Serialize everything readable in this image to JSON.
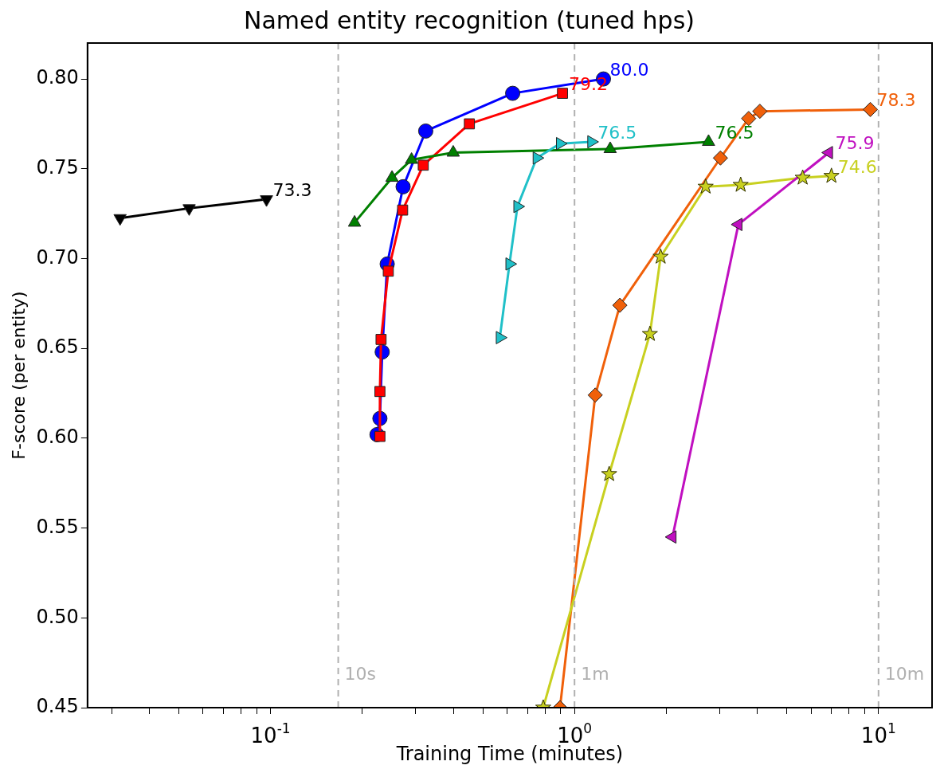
{
  "chart_data": {
    "type": "line",
    "title": "Named entity recognition (tuned hps)",
    "xlabel": "Training Time (minutes)",
    "ylabel": "F-score (per entity)",
    "log": "x",
    "grid": false,
    "legend": false,
    "line_style": "solid",
    "xlim": [
      0.025,
      15
    ],
    "ylim": [
      0.45,
      0.82
    ],
    "xticks": [
      {
        "value": 0.03,
        "label": null
      },
      {
        "value": 0.04,
        "label": null
      },
      {
        "value": 0.05,
        "label": null
      },
      {
        "value": 0.06,
        "label": null
      },
      {
        "value": 0.07,
        "label": null
      },
      {
        "value": 0.08,
        "label": null
      },
      {
        "value": 0.09,
        "label": null
      },
      {
        "value": 0.1,
        "label": "10$^{-1}$"
      },
      {
        "value": 0.2,
        "label": null
      },
      {
        "value": 0.3,
        "label": null
      },
      {
        "value": 0.4,
        "label": null
      },
      {
        "value": 0.5,
        "label": null
      },
      {
        "value": 0.6,
        "label": null
      },
      {
        "value": 0.7,
        "label": null
      },
      {
        "value": 0.8,
        "label": null
      },
      {
        "value": 0.9,
        "label": null
      },
      {
        "value": 1,
        "label": "10$^{0}$"
      },
      {
        "value": 2,
        "label": null
      },
      {
        "value": 3,
        "label": null
      },
      {
        "value": 4,
        "label": null
      },
      {
        "value": 5,
        "label": null
      },
      {
        "value": 6,
        "label": null
      },
      {
        "value": 7,
        "label": null
      },
      {
        "value": 8,
        "label": null
      },
      {
        "value": 9,
        "label": null
      },
      {
        "value": 10,
        "label": "10$^{1}$"
      }
    ],
    "yticks": [
      {
        "value": 0.45,
        "label": "0.45"
      },
      {
        "value": 0.5,
        "label": "0.50"
      },
      {
        "value": 0.55,
        "label": "0.55"
      },
      {
        "value": 0.6,
        "label": "0.60"
      },
      {
        "value": 0.65,
        "label": "0.65"
      },
      {
        "value": 0.7,
        "label": "0.70"
      },
      {
        "value": 0.75,
        "label": "0.75"
      },
      {
        "value": 0.8,
        "label": "0.80"
      }
    ],
    "annotations": [
      {
        "text": "73.3",
        "x": 0.097,
        "y": 0.733
      },
      {
        "text": "80.0",
        "x": 1.245,
        "y": 0.8
      },
      {
        "text": "79.2",
        "x": 0.913,
        "y": 0.792
      },
      {
        "text": "76.5",
        "x": 2.76,
        "y": 0.765
      },
      {
        "text": "76.5",
        "x": 1.136,
        "y": 0.765
      },
      {
        "text": "78.3",
        "x": 9.4,
        "y": 0.783
      },
      {
        "text": "74.6",
        "x": 7.0,
        "y": 0.746
      },
      {
        "text": "75.9",
        "x": 6.87,
        "y": 0.759
      }
    ],
    "ref_lines": [
      {
        "axis": "x",
        "value": 0.167,
        "label": "10s",
        "color": "#b0b0b0",
        "line_style": "dashed"
      },
      {
        "axis": "x",
        "value": 1,
        "label": "1m",
        "color": "#b0b0b0",
        "line_style": "dashed"
      },
      {
        "axis": "x",
        "value": 10,
        "label": "10m",
        "color": "#b0b0b0",
        "line_style": "dashed"
      }
    ],
    "series": [
      {
        "color": "#000000",
        "marker": "triangle-down",
        "x": [
          0.032,
          0.054,
          0.097
        ],
        "values": [
          0.7225,
          0.728,
          0.733
        ]
      },
      {
        "color": "#0000ff",
        "marker": "circle",
        "x": [
          0.224,
          0.229,
          0.233,
          0.242,
          0.273,
          0.324,
          0.626,
          1.245
        ],
        "values": [
          0.602,
          0.611,
          0.648,
          0.697,
          0.74,
          0.771,
          0.792,
          0.8
        ]
      },
      {
        "color": "#ff0000",
        "marker": "square",
        "x": [
          0.229,
          0.229,
          0.231,
          0.244,
          0.272,
          0.318,
          0.451,
          0.913
        ],
        "values": [
          0.601,
          0.626,
          0.655,
          0.693,
          0.727,
          0.752,
          0.775,
          0.792
        ]
      },
      {
        "color": "#008000",
        "marker": "triangle",
        "x": [
          0.189,
          0.251,
          0.291,
          0.399,
          1.31,
          2.76
        ],
        "values": [
          0.72,
          0.745,
          0.755,
          0.759,
          0.761,
          0.765
        ]
      },
      {
        "color": "#20c0c8",
        "marker": "triangle-right",
        "x": [
          0.568,
          0.611,
          0.649,
          0.751,
          0.896,
          1.136
        ],
        "values": [
          0.656,
          0.697,
          0.729,
          0.756,
          0.764,
          0.765
        ]
      },
      {
        "color": "#f0600a",
        "marker": "diamond",
        "x": [
          0.896,
          1.17,
          1.41,
          3.02,
          3.74,
          4.07,
          9.4
        ],
        "values": [
          0.45,
          0.624,
          0.674,
          0.756,
          0.778,
          0.782,
          0.783
        ]
      },
      {
        "color": "#c8d020",
        "marker": "star",
        "x": [
          0.789,
          1.3,
          1.77,
          1.92,
          2.7,
          3.52,
          5.63,
          7.0
        ],
        "values": [
          0.45,
          0.58,
          0.658,
          0.701,
          0.74,
          0.741,
          0.745,
          0.746
        ]
      },
      {
        "color": "#c010c0",
        "marker": "triangle-left",
        "x": [
          2.1,
          3.46,
          6.87
        ],
        "values": [
          0.545,
          0.719,
          0.759
        ]
      }
    ]
  }
}
